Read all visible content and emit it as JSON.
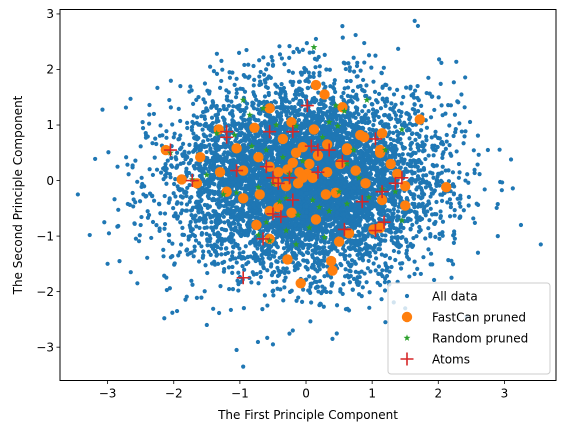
{
  "chart_data": {
    "type": "scatter",
    "title": "",
    "xlabel": "The First Principle Component",
    "ylabel": "The Second Principle Component",
    "xlim": [
      -3.72,
      3.78
    ],
    "ylim": [
      -3.6,
      3.08
    ],
    "xticks": [
      -3,
      -2,
      -1,
      0,
      1,
      2,
      3
    ],
    "yticks": [
      -3,
      -2,
      -1,
      0,
      1,
      2,
      3
    ],
    "grid": false,
    "legend_position": "lower-right",
    "series": [
      {
        "name": "All data",
        "marker": "dot",
        "color": "#1f77b4",
        "cloud": {
          "count": 7000,
          "center": [
            0,
            0
          ],
          "std": [
            0.95,
            0.82
          ],
          "seed": 7
        },
        "points": [
          [
            -3.45,
            -0.25
          ],
          [
            -3.05,
            -0.75
          ],
          [
            -2.98,
            -0.95
          ],
          [
            -2.82,
            -1.45
          ],
          [
            -2.65,
            -1.65
          ],
          [
            -2.72,
            0.42
          ],
          [
            -2.85,
            0.25
          ],
          [
            -2.55,
            -1.85
          ],
          [
            -1.95,
            -2.35
          ],
          [
            -1.5,
            -2.6
          ],
          [
            -1.05,
            -3.05
          ],
          [
            -0.95,
            -3.35
          ],
          [
            -0.5,
            -2.95
          ],
          [
            -1.45,
            2.05
          ],
          [
            -0.9,
            2.35
          ],
          [
            -0.25,
            2.42
          ],
          [
            0.55,
            2.78
          ],
          [
            0.75,
            2.62
          ],
          [
            1.05,
            2.25
          ],
          [
            0.15,
            2.55
          ],
          [
            2.9,
            -1.0
          ],
          [
            3.25,
            -0.8
          ],
          [
            3.55,
            -1.15
          ],
          [
            3.1,
            0.38
          ],
          [
            2.75,
            0.55
          ],
          [
            2.35,
            1.55
          ],
          [
            1.85,
            1.85
          ],
          [
            1.5,
            -2.3
          ],
          [
            1.2,
            -2.55
          ],
          [
            2.2,
            -1.75
          ],
          [
            -0.2,
            -2.7
          ],
          [
            0.4,
            -2.85
          ],
          [
            -1.9,
            1.7
          ],
          [
            -2.3,
            1.2
          ],
          [
            2.6,
            -1.3
          ]
        ]
      },
      {
        "name": "FastCan pruned",
        "marker": "circle",
        "color": "#ff7f0e",
        "points": [
          [
            0.15,
            1.72
          ],
          [
            0.28,
            1.55
          ],
          [
            -0.55,
            1.3
          ],
          [
            -0.22,
            1.05
          ],
          [
            0.55,
            1.32
          ],
          [
            0.82,
            0.82
          ],
          [
            0.12,
            0.92
          ],
          [
            -0.05,
            0.6
          ],
          [
            -0.78,
            0.95
          ],
          [
            -0.35,
            0.75
          ],
          [
            -1.32,
            0.92
          ],
          [
            -1.05,
            0.58
          ],
          [
            -0.72,
            0.42
          ],
          [
            0.32,
            0.65
          ],
          [
            0.62,
            0.58
          ],
          [
            1.15,
            0.85
          ],
          [
            1.72,
            1.1
          ],
          [
            1.12,
            0.55
          ],
          [
            1.12,
            0.5
          ],
          [
            0.52,
            0.3
          ],
          [
            -0.15,
            0.5
          ],
          [
            -0.1,
            0.15
          ],
          [
            0.02,
            0.12
          ],
          [
            -0.05,
            0.05
          ],
          [
            0.1,
            0.05
          ],
          [
            0.18,
            0.45
          ],
          [
            -0.28,
            0.2
          ],
          [
            -0.12,
            -0.05
          ],
          [
            -0.3,
            -0.1
          ],
          [
            -0.55,
            0.25
          ],
          [
            -1.6,
            0.42
          ],
          [
            -1.88,
            0.02
          ],
          [
            -2.12,
            0.55
          ],
          [
            -1.3,
            0.15
          ],
          [
            -0.95,
            0.18
          ],
          [
            -0.42,
            0.15
          ],
          [
            0.3,
            -0.25
          ],
          [
            0.62,
            0.55
          ],
          [
            0.75,
            0.18
          ],
          [
            0.9,
            -0.05
          ],
          [
            1.28,
            0.3
          ],
          [
            1.15,
            -0.35
          ],
          [
            1.5,
            -0.1
          ],
          [
            1.38,
            0.12
          ],
          [
            1.12,
            -0.85
          ],
          [
            1.02,
            -0.88
          ],
          [
            2.12,
            -0.12
          ],
          [
            1.5,
            -0.45
          ],
          [
            0.65,
            -0.95
          ],
          [
            0.5,
            -1.1
          ],
          [
            -0.55,
            -1.05
          ],
          [
            -0.75,
            -0.8
          ],
          [
            -0.42,
            -0.48
          ],
          [
            -0.22,
            -0.58
          ],
          [
            -0.7,
            -0.25
          ],
          [
            -0.95,
            -0.32
          ],
          [
            -1.2,
            -0.2
          ],
          [
            -1.65,
            -0.05
          ],
          [
            -0.08,
            -1.85
          ],
          [
            0.38,
            -1.45
          ],
          [
            0.4,
            -1.62
          ],
          [
            -0.28,
            -1.42
          ],
          [
            0.15,
            -0.7
          ],
          [
            -0.45,
            -0.02
          ],
          [
            0.32,
            0.15
          ],
          [
            -0.2,
            0.32
          ],
          [
            0.05,
            0.3
          ],
          [
            0.45,
            -0.22
          ],
          [
            -0.55,
            -0.55
          ],
          [
            0.88,
            0.78
          ]
        ]
      },
      {
        "name": "Random pruned",
        "marker": "star",
        "color": "#2ca02c",
        "points": [
          [
            0.12,
            2.4
          ],
          [
            -0.95,
            1.45
          ],
          [
            -0.85,
            1.18
          ],
          [
            -0.65,
            1.3
          ],
          [
            -0.45,
            1.0
          ],
          [
            -0.15,
            0.98
          ],
          [
            0.45,
            1.35
          ],
          [
            0.92,
            1.45
          ],
          [
            0.35,
            1.05
          ],
          [
            0.58,
            1.25
          ],
          [
            -1.35,
            0.85
          ],
          [
            -1.08,
            0.82
          ],
          [
            -0.82,
            0.62
          ],
          [
            -0.6,
            0.55
          ],
          [
            -0.35,
            0.42
          ],
          [
            0.25,
            0.78
          ],
          [
            0.48,
            0.98
          ],
          [
            0.72,
            0.55
          ],
          [
            1.45,
            0.92
          ],
          [
            1.2,
            0.55
          ],
          [
            0.62,
            0.3
          ],
          [
            0.8,
            0.05
          ],
          [
            -0.05,
            0.35
          ],
          [
            -0.25,
            0.12
          ],
          [
            -0.5,
            -0.05
          ],
          [
            -0.72,
            -0.12
          ],
          [
            -1.05,
            -0.22
          ],
          [
            -1.5,
            0.1
          ],
          [
            -1.72,
            0.02
          ],
          [
            -1.25,
            -0.25
          ],
          [
            -2.05,
            0.5
          ],
          [
            -0.3,
            -0.32
          ],
          [
            0.1,
            -0.35
          ],
          [
            0.35,
            -0.55
          ],
          [
            0.62,
            -0.42
          ],
          [
            0.95,
            -0.3
          ],
          [
            1.15,
            -0.15
          ],
          [
            1.45,
            -0.72
          ],
          [
            1.35,
            -0.2
          ],
          [
            -0.6,
            -0.75
          ],
          [
            -0.72,
            -0.98
          ],
          [
            -0.55,
            -1.08
          ],
          [
            -0.3,
            -0.9
          ],
          [
            0.05,
            -0.85
          ],
          [
            0.28,
            -1.02
          ],
          [
            -0.15,
            -1.15
          ],
          [
            0.2,
            -0.48
          ],
          [
            -0.4,
            -0.38
          ],
          [
            -0.12,
            -0.62
          ],
          [
            0.5,
            -0.2
          ]
        ]
      },
      {
        "name": "Atoms",
        "marker": "plus",
        "color": "#d62728",
        "points": [
          [
            0.02,
            1.35
          ],
          [
            -0.55,
            0.88
          ],
          [
            -0.2,
            0.88
          ],
          [
            0.08,
            0.62
          ],
          [
            0.35,
            0.55
          ],
          [
            0.18,
            0.55
          ],
          [
            0.55,
            0.35
          ],
          [
            1.05,
            0.75
          ],
          [
            -1.2,
            0.88
          ],
          [
            -1.2,
            0.78
          ],
          [
            -2.05,
            0.55
          ],
          [
            -1.72,
            0.0
          ],
          [
            -1.05,
            0.18
          ],
          [
            -0.6,
            0.25
          ],
          [
            -0.5,
            0.05
          ],
          [
            0.18,
            0.15
          ],
          [
            1.45,
            0.05
          ],
          [
            1.35,
            -0.05
          ],
          [
            1.15,
            -0.2
          ],
          [
            0.85,
            -0.38
          ],
          [
            1.05,
            -0.9
          ],
          [
            1.18,
            -0.75
          ],
          [
            -0.5,
            -0.6
          ],
          [
            -0.38,
            -0.65
          ],
          [
            -0.2,
            -0.35
          ],
          [
            0.58,
            -0.88
          ],
          [
            -0.95,
            -1.75
          ],
          [
            -0.65,
            -1.05
          ],
          [
            -0.25,
            0.05
          ],
          [
            -0.42,
            -0.05
          ]
        ]
      }
    ]
  }
}
